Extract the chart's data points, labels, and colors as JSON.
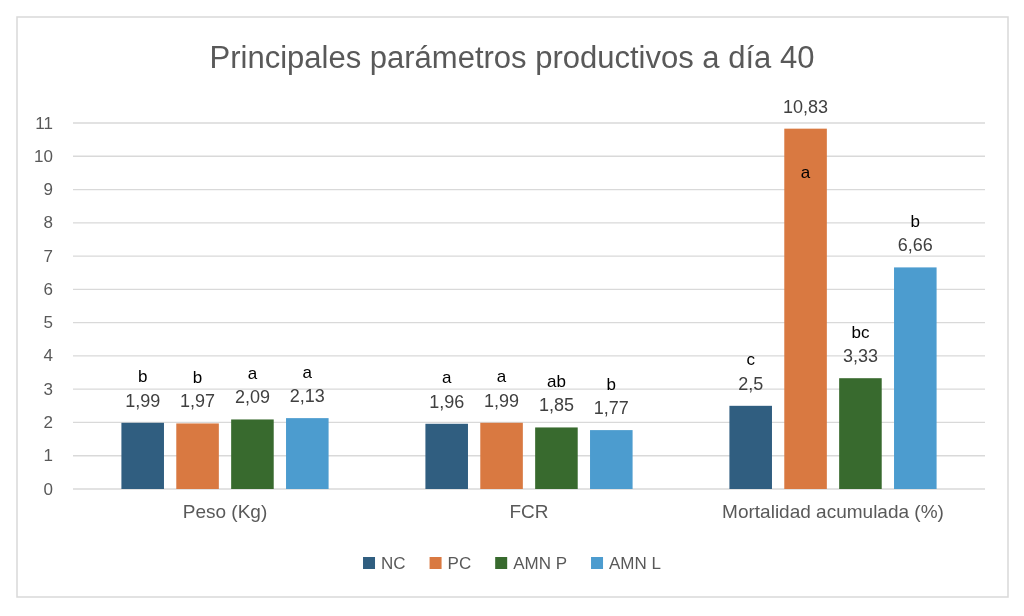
{
  "chart_data": {
    "type": "bar",
    "title": "Principales parámetros productivos a día 40",
    "categories": [
      "Peso (Kg)",
      "FCR",
      "Mortalidad acumulada (%)"
    ],
    "series": [
      {
        "name": "NC",
        "color": "#305e80",
        "values": [
          1.99,
          1.96,
          2.5
        ],
        "value_labels": [
          "1,99",
          "1,96",
          "2,5"
        ]
      },
      {
        "name": "PC",
        "color": "#d97941",
        "values": [
          1.97,
          1.99,
          10.83
        ],
        "value_labels": [
          "1,97",
          "1,99",
          "10,83"
        ]
      },
      {
        "name": "AMN P",
        "color": "#386a2e",
        "values": [
          2.09,
          1.85,
          3.33
        ],
        "value_labels": [
          "2,09",
          "1,85",
          "3,33"
        ]
      },
      {
        "name": "AMN L",
        "color": "#4c9ccf",
        "values": [
          2.13,
          1.77,
          6.66
        ],
        "value_labels": [
          "2,13",
          "1,77",
          "6,66"
        ]
      }
    ],
    "annotations": [
      "b",
      "b",
      "a",
      "a",
      "a",
      "a",
      "ab",
      "b",
      "c",
      "a",
      "bc",
      "b"
    ],
    "ylim": [
      0,
      11
    ],
    "yticks": [
      0,
      1,
      2,
      3,
      4,
      5,
      6,
      7,
      8,
      9,
      10,
      11
    ],
    "grid": "y",
    "legend": "bottom"
  }
}
